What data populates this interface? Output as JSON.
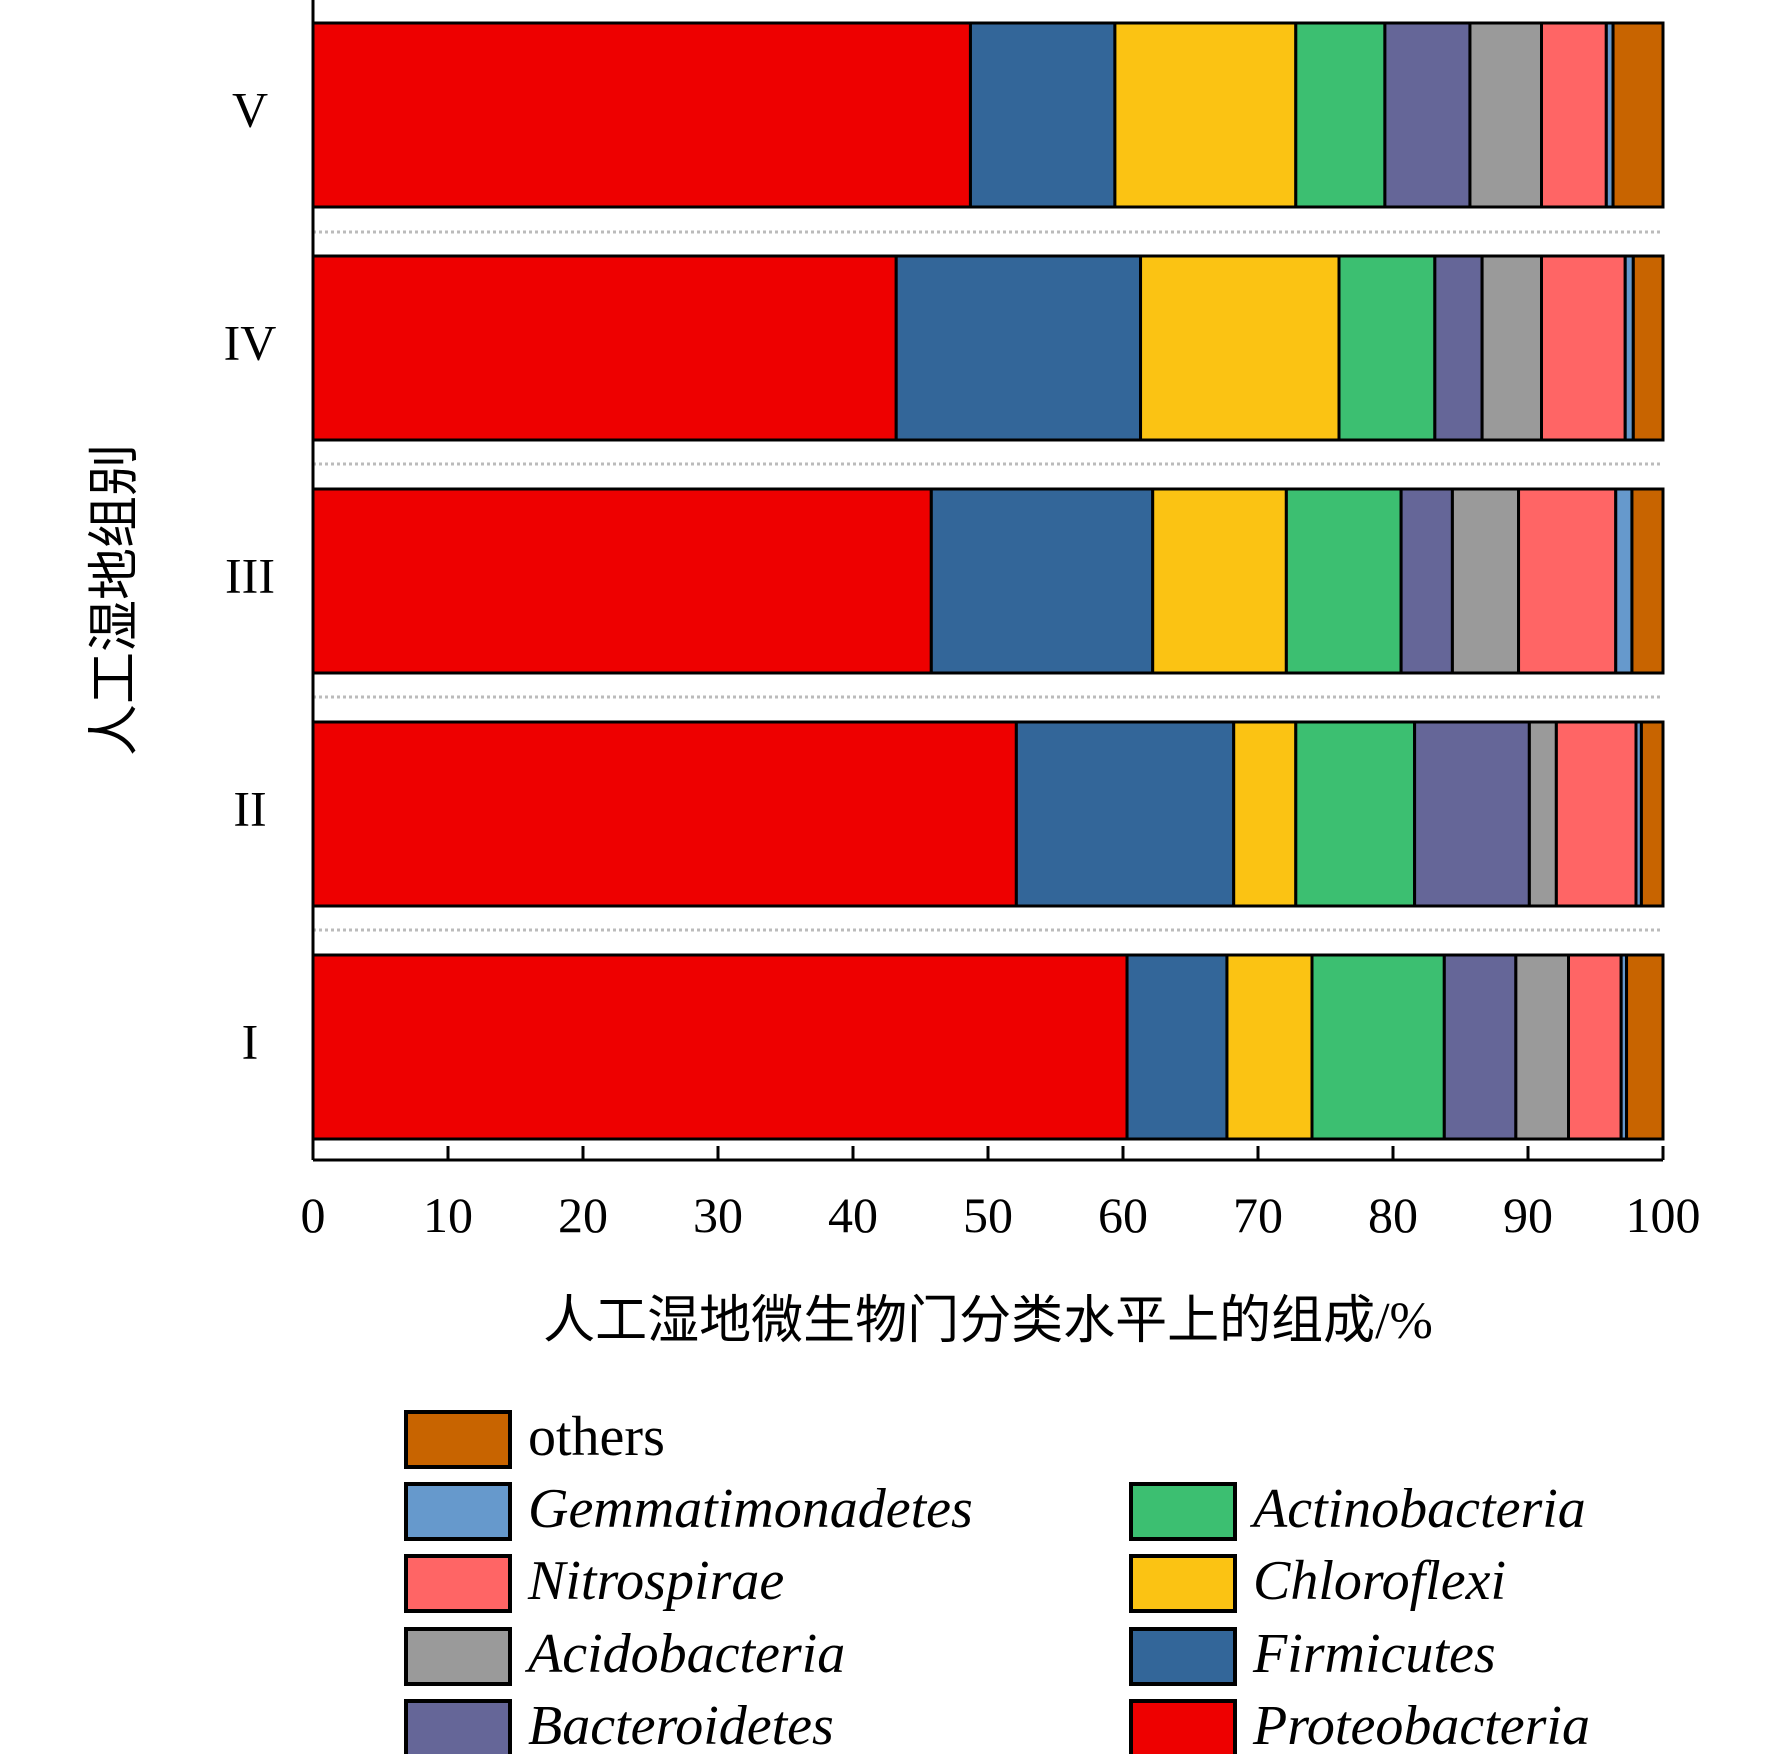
{
  "chart_data": {
    "type": "bar",
    "orientation": "horizontal",
    "stacked": true,
    "categories": [
      "I",
      "II",
      "III",
      "IV",
      "V"
    ],
    "xlabel": "人工湿地微生物门分类水平上的组成/%",
    "ylabel": "人工湿地组别",
    "xlim": [
      0,
      100
    ],
    "x_ticks": [
      "0",
      "10",
      "20",
      "30",
      "40",
      "50",
      "60",
      "70",
      "80",
      "90",
      "100"
    ],
    "grid": false,
    "legend_position": "bottom",
    "series": [
      {
        "name": "Proteobacteria",
        "color": "#EE0000",
        "italic": true,
        "values": [
          60.3,
          52.1,
          45.8,
          43.2,
          48.7
        ]
      },
      {
        "name": "Firmicutes",
        "color": "#336699",
        "italic": true,
        "values": [
          7.4,
          16.1,
          16.4,
          18.1,
          10.7
        ]
      },
      {
        "name": "Chloroflexi",
        "color": "#FBC313",
        "italic": true,
        "values": [
          6.3,
          4.6,
          9.9,
          14.7,
          13.4
        ]
      },
      {
        "name": "Actinobacteria",
        "color": "#3CBF71",
        "italic": true,
        "values": [
          9.8,
          8.8,
          8.5,
          7.1,
          6.6
        ]
      },
      {
        "name": "Bacteroidetes",
        "color": "#656698",
        "italic": true,
        "values": [
          5.3,
          8.5,
          3.8,
          3.5,
          6.3
        ]
      },
      {
        "name": "Acidobacteria",
        "color": "#9A9A9A",
        "italic": true,
        "values": [
          3.9,
          2.0,
          4.9,
          4.4,
          5.3
        ]
      },
      {
        "name": "Nitrospirae",
        "color": "#FF6565",
        "italic": true,
        "values": [
          3.9,
          5.9,
          7.2,
          6.2,
          4.8
        ]
      },
      {
        "name": "Gemmatimonadetes",
        "color": "#6699CC",
        "italic": true,
        "values": [
          0.4,
          0.4,
          1.2,
          0.6,
          0.5
        ]
      },
      {
        "name": "others",
        "color": "#C86400",
        "italic": false,
        "values": [
          2.7,
          1.6,
          2.3,
          2.2,
          3.7
        ]
      }
    ]
  }
}
